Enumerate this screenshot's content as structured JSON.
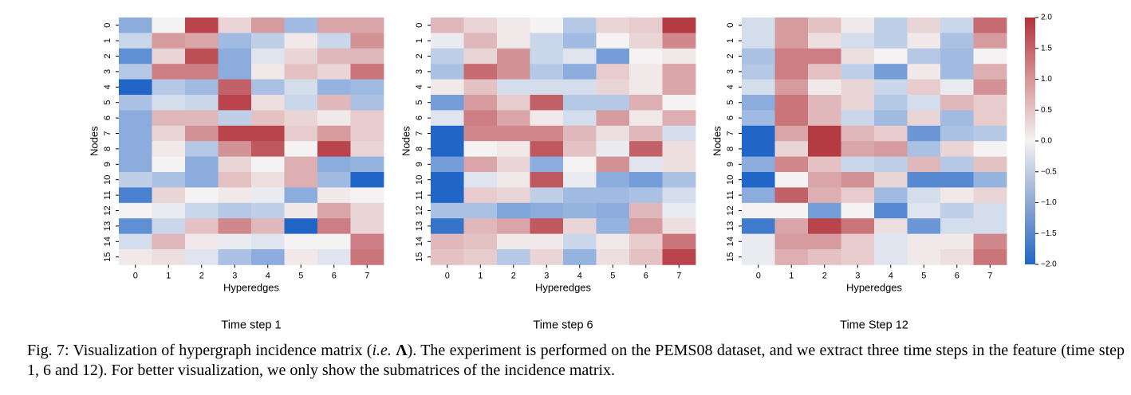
{
  "chart_data": {
    "type": "heatmap",
    "colormap": "vlag",
    "colors": {
      "low": "#2166c7",
      "mid": "#f4f2f2",
      "high": "#b2313a"
    },
    "vmin": -2.0,
    "vmax": 2.0,
    "colorbar_ticks": [
      "2.0",
      "1.5",
      "1.0",
      "0.5",
      "0.0",
      "−0.5",
      "−1.0",
      "−1.5",
      "−2.0"
    ],
    "colorbar_values": [
      2.0,
      1.5,
      1.0,
      0.5,
      0.0,
      -0.5,
      -1.0,
      -1.5,
      -2.0
    ],
    "xlabel": "Hyperedges",
    "ylabel": "Nodes",
    "x_ticks": [
      "0",
      "1",
      "2",
      "3",
      "4",
      "5",
      "6",
      "7"
    ],
    "y_ticks": [
      "0",
      "1",
      "2",
      "3",
      "4",
      "5",
      "6",
      "7",
      "8",
      "9",
      "10",
      "11",
      "12",
      "13",
      "14",
      "15"
    ],
    "panels": [
      {
        "title": "Time step 1",
        "values": [
          [
            -1.0,
            0.0,
            1.8,
            0.3,
            0.9,
            -0.8,
            0.8,
            0.8
          ],
          [
            -0.4,
            0.9,
            0.8,
            -0.8,
            -0.5,
            0.1,
            -0.4,
            1.0
          ],
          [
            -1.4,
            0.3,
            1.7,
            -1.0,
            -0.2,
            0.3,
            0.6,
            0.6
          ],
          [
            -0.6,
            1.2,
            1.2,
            -1.0,
            0.1,
            0.5,
            0.3,
            1.3
          ],
          [
            -2.0,
            -0.6,
            -0.8,
            1.5,
            -0.7,
            -0.3,
            -0.9,
            -0.8
          ],
          [
            -0.7,
            -0.3,
            -0.4,
            1.8,
            0.2,
            -0.4,
            0.6,
            -0.7
          ],
          [
            -1.0,
            0.6,
            0.6,
            -0.5,
            0.5,
            0.3,
            0.1,
            0.4
          ],
          [
            -1.0,
            0.3,
            1.0,
            1.8,
            1.8,
            0.4,
            0.9,
            0.4
          ],
          [
            -1.0,
            0.1,
            -0.6,
            1.0,
            1.6,
            0.0,
            1.8,
            0.3
          ],
          [
            -1.0,
            0.0,
            -1.0,
            0.3,
            0.0,
            0.7,
            -1.0,
            -0.9
          ],
          [
            -0.5,
            -0.7,
            -1.0,
            0.5,
            0.2,
            0.7,
            -0.8,
            -2.0
          ],
          [
            -1.6,
            0.3,
            0.0,
            0.1,
            -0.1,
            -1.0,
            0.1,
            0.0
          ],
          [
            0.0,
            -0.1,
            -0.4,
            -0.6,
            -0.5,
            0.1,
            0.8,
            0.3
          ],
          [
            -1.4,
            -0.4,
            0.5,
            1.1,
            0.6,
            -2.0,
            1.2,
            0.3
          ],
          [
            -0.3,
            0.6,
            0.1,
            -0.1,
            -0.2,
            0.0,
            0.0,
            1.2
          ],
          [
            0.1,
            0.2,
            -0.2,
            -0.7,
            -1.0,
            0.1,
            -0.2,
            1.3
          ]
        ]
      },
      {
        "title": "Time step 6",
        "values": [
          [
            0.6,
            0.3,
            0.1,
            0.0,
            -0.6,
            0.3,
            0.4,
            1.9
          ],
          [
            -0.1,
            0.6,
            0.1,
            -0.4,
            -0.8,
            0.0,
            0.3,
            1.1
          ],
          [
            -0.5,
            0.3,
            1.0,
            -0.4,
            -0.2,
            -1.2,
            0.0,
            0.1
          ],
          [
            -0.7,
            1.4,
            1.0,
            -0.6,
            -1.0,
            0.4,
            0.1,
            0.8
          ],
          [
            0.1,
            0.5,
            -0.3,
            -0.3,
            -0.3,
            0.3,
            0.1,
            0.8
          ],
          [
            -1.2,
            0.9,
            0.4,
            1.5,
            -0.6,
            -0.6,
            0.7,
            0.0
          ],
          [
            -0.2,
            1.2,
            0.8,
            0.1,
            -0.3,
            0.9,
            0.1,
            0.7
          ],
          [
            -2.0,
            1.1,
            1.1,
            1.1,
            0.6,
            0.2,
            0.6,
            -0.3
          ],
          [
            -2.0,
            0.0,
            0.1,
            1.6,
            0.5,
            -0.1,
            1.5,
            0.2
          ],
          [
            -1.2,
            0.8,
            0.3,
            -1.0,
            0.0,
            1.0,
            -0.2,
            0.2
          ],
          [
            -2.0,
            -0.2,
            0.1,
            1.6,
            -0.1,
            -1.0,
            -1.2,
            -0.7
          ],
          [
            -2.0,
            0.4,
            0.3,
            -0.5,
            -0.8,
            -0.8,
            -0.7,
            -0.3
          ],
          [
            -0.7,
            -0.7,
            -1.1,
            -1.0,
            -0.9,
            -1.0,
            0.6,
            -0.1
          ],
          [
            -1.8,
            0.6,
            0.8,
            1.6,
            0.3,
            -0.9,
            0.9,
            0.2
          ],
          [
            0.6,
            0.5,
            0.1,
            0.1,
            -0.4,
            0.1,
            0.4,
            1.3
          ],
          [
            0.5,
            0.4,
            -0.6,
            0.3,
            -0.9,
            0.2,
            0.5,
            1.8
          ]
        ]
      },
      {
        "title": "Time Step 12",
        "values": [
          [
            -0.3,
            0.9,
            0.5,
            0.1,
            -0.5,
            0.3,
            -0.4,
            1.4
          ],
          [
            -0.3,
            0.9,
            0.2,
            -0.3,
            -0.5,
            0.1,
            -0.7,
            0.9
          ],
          [
            -0.7,
            1.2,
            1.2,
            0.2,
            0.0,
            -0.6,
            -0.8,
            0.0
          ],
          [
            -0.6,
            1.2,
            0.5,
            -0.5,
            -1.2,
            0.1,
            -0.8,
            0.7
          ],
          [
            -0.3,
            0.9,
            0.1,
            0.3,
            -0.4,
            0.4,
            -0.1,
            1.0
          ],
          [
            -1.0,
            1.3,
            0.6,
            0.3,
            -0.6,
            -0.3,
            0.6,
            0.4
          ],
          [
            -0.8,
            1.3,
            0.6,
            -0.4,
            -0.8,
            0.3,
            -0.8,
            0.4
          ],
          [
            -2.0,
            0.8,
            1.9,
            0.6,
            0.4,
            -1.3,
            -0.7,
            -0.6
          ],
          [
            -2.0,
            0.3,
            1.9,
            0.8,
            0.9,
            -0.7,
            0.3,
            0.0
          ],
          [
            -1.0,
            1.1,
            0.5,
            -0.4,
            -0.5,
            0.6,
            -0.6,
            0.5
          ],
          [
            -2.0,
            0.0,
            0.8,
            1.0,
            0.3,
            -1.5,
            -1.5,
            -0.9
          ],
          [
            -1.0,
            1.5,
            0.7,
            0.4,
            -0.8,
            -0.3,
            0.1,
            0.3
          ],
          [
            0.0,
            0.0,
            -1.2,
            0.0,
            -1.5,
            -0.2,
            -0.5,
            -0.3
          ],
          [
            -1.7,
            0.8,
            1.8,
            1.3,
            0.2,
            -1.3,
            -0.3,
            -0.3
          ],
          [
            -0.1,
            0.9,
            0.9,
            0.4,
            -0.2,
            0.1,
            0.1,
            1.1
          ],
          [
            -0.1,
            0.7,
            0.5,
            0.4,
            -0.2,
            0.1,
            0.2,
            1.3
          ]
        ]
      }
    ]
  },
  "caption": {
    "prefix": "Fig. 7: Visualization of hypergraph incidence matrix (",
    "ie": "i.e.",
    "symbol": "Λ",
    "suffix": "). The experiment is performed on the PEMS08 dataset, and we extract three time steps in the feature (time step 1, 6 and 12). For better visualization, we only show the submatrices of the incidence matrix."
  }
}
